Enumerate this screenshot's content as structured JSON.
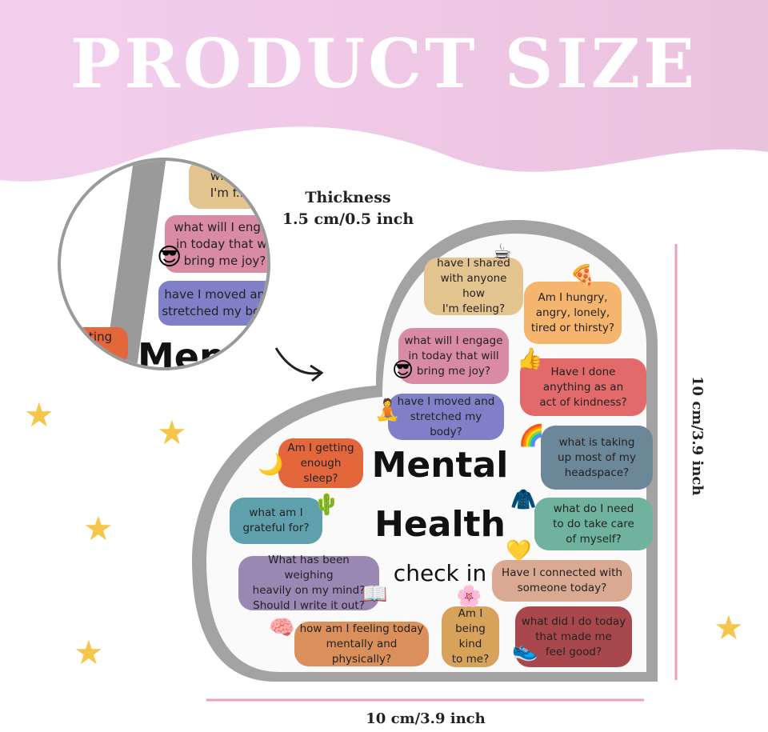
{
  "banner": {
    "title": "PRODUCT SIZE"
  },
  "dimensions": {
    "thickness_label": "Thickness",
    "thickness_value": "1.5 cm/0.5 inch",
    "height": "10 cm/3.9 inch",
    "width": "10 cm/3.9 inch"
  },
  "product": {
    "title_line1": "Mental",
    "title_line2": "Health",
    "title_line3": "check in",
    "bubbles": [
      {
        "text": "have I shared\nwith anyone how\nI'm feeling?",
        "color": "#e3c48f"
      },
      {
        "text": "Am I hungry,\nangry, lonely,\ntired or thirsty?",
        "color": "#f5b56e"
      },
      {
        "text": "what will I engage\nin today that will\nbring me joy?",
        "color": "#d98aa4"
      },
      {
        "text": "Have I done\nanything as an\nact of kindness?",
        "color": "#e26a6a"
      },
      {
        "text": "have I moved and\nstretched my body?",
        "color": "#7f80c8"
      },
      {
        "text": "what is taking\nup most of my\nheadspace?",
        "color": "#6c8798"
      },
      {
        "text": "Am I getting\nenough sleep?",
        "color": "#e4673c"
      },
      {
        "text": "what am I\ngrateful for?",
        "color": "#5fa0ad"
      },
      {
        "text": "what do I need\nto do take care\nof myself?",
        "color": "#6fb29d"
      },
      {
        "text": "What has been weighing\nheavily on my mind?\nShould I write it out?",
        "color": "#9b87b4"
      },
      {
        "text": "Have I connected with\nsomeone today?",
        "color": "#d9a991"
      },
      {
        "text": "Am I being\nkind\nto me?",
        "color": "#d7a25a"
      },
      {
        "text": "what did I do today\nthat made me\nfeel good?",
        "color": "#a9484c"
      },
      {
        "text": "how am I feeling today\nmentally and physically?",
        "color": "#db8f5a"
      }
    ]
  },
  "inset": {
    "bubbles": [
      {
        "text": "with...\nI'm f...",
        "color": "#e3c48f"
      },
      {
        "text": "what will I engag\nin today that wil\nbring me joy?",
        "color": "#d98aa4"
      },
      {
        "text": "have I moved and\nstretched my body",
        "color": "#7f80c8"
      },
      {
        "text": "etting\np?",
        "color": "#e4673c"
      }
    ],
    "title_fragment": "Men"
  },
  "colors": {
    "banner": "#f1c6e6",
    "accent_line": "#f0a0b4",
    "star": "#f6c64a",
    "frame": "#9a9a9a"
  }
}
